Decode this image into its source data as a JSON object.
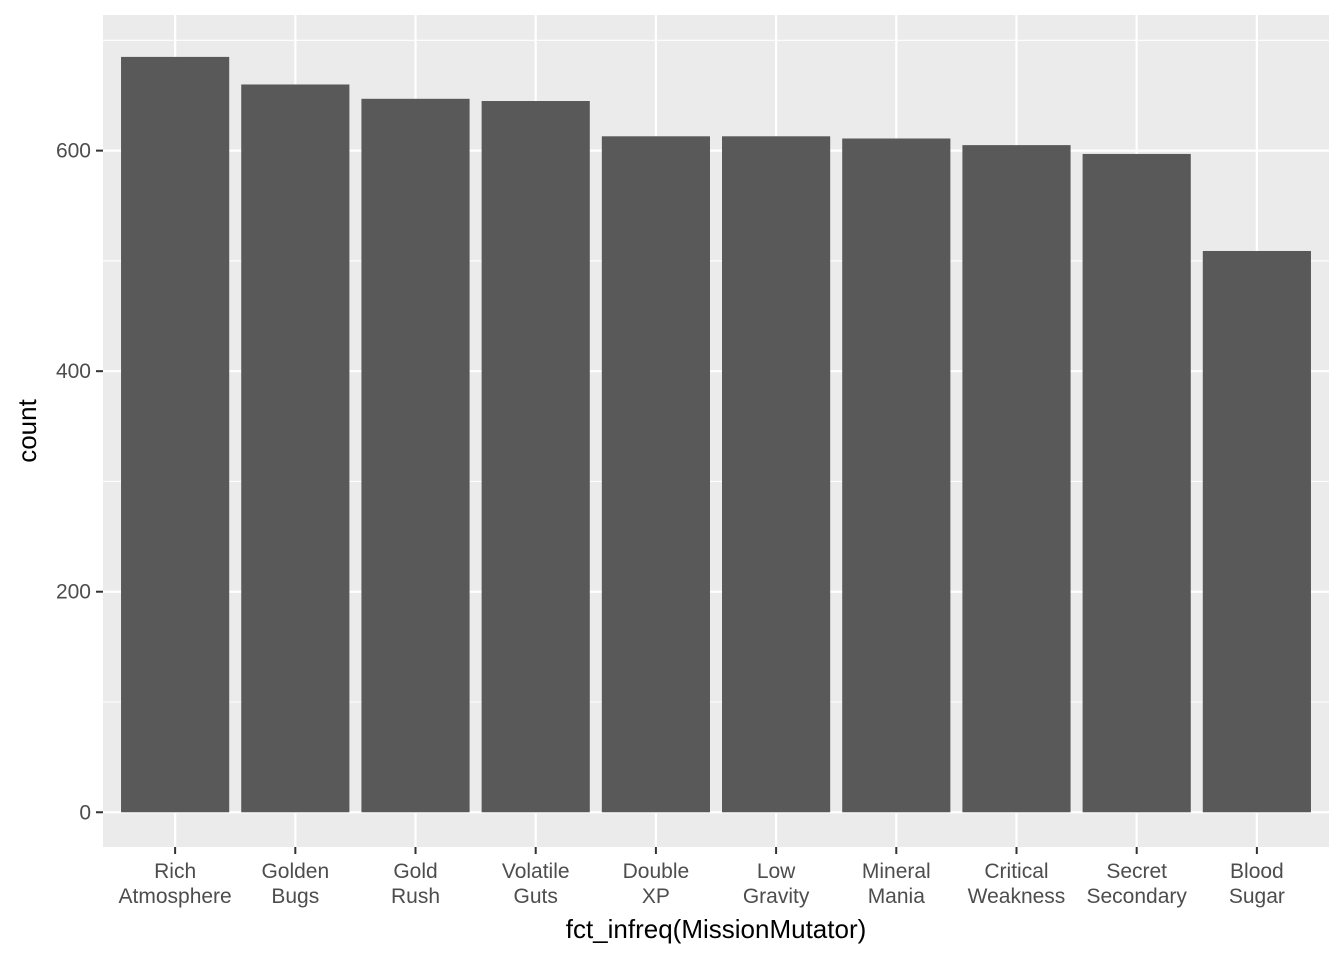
{
  "chart_data": {
    "type": "bar",
    "categories": [
      [
        "Rich",
        "Atmosphere"
      ],
      [
        "Golden",
        "Bugs"
      ],
      [
        "Gold",
        "Rush"
      ],
      [
        "Volatile",
        "Guts"
      ],
      [
        "Double",
        "XP"
      ],
      [
        "Low",
        "Gravity"
      ],
      [
        "Mineral",
        "Mania"
      ],
      [
        "Critical",
        "Weakness"
      ],
      [
        "Secret",
        "Secondary"
      ],
      [
        "Blood",
        "Sugar"
      ]
    ],
    "values": [
      685,
      660,
      647,
      645,
      613,
      613,
      611,
      605,
      597,
      509
    ],
    "xlabel": "fct_infreq(MissionMutator)",
    "ylabel": "count",
    "ylim": [
      -31.5,
      723
    ],
    "yticks": [
      0,
      200,
      400,
      600
    ],
    "y_minor_ticks": [
      100,
      300,
      500,
      700
    ],
    "grid": true,
    "colors": {
      "panel": "#ebebeb",
      "gridline": "#ffffff",
      "bar": "#595959",
      "tick_text": "#4d4d4d",
      "tick_mark": "#333333"
    }
  }
}
